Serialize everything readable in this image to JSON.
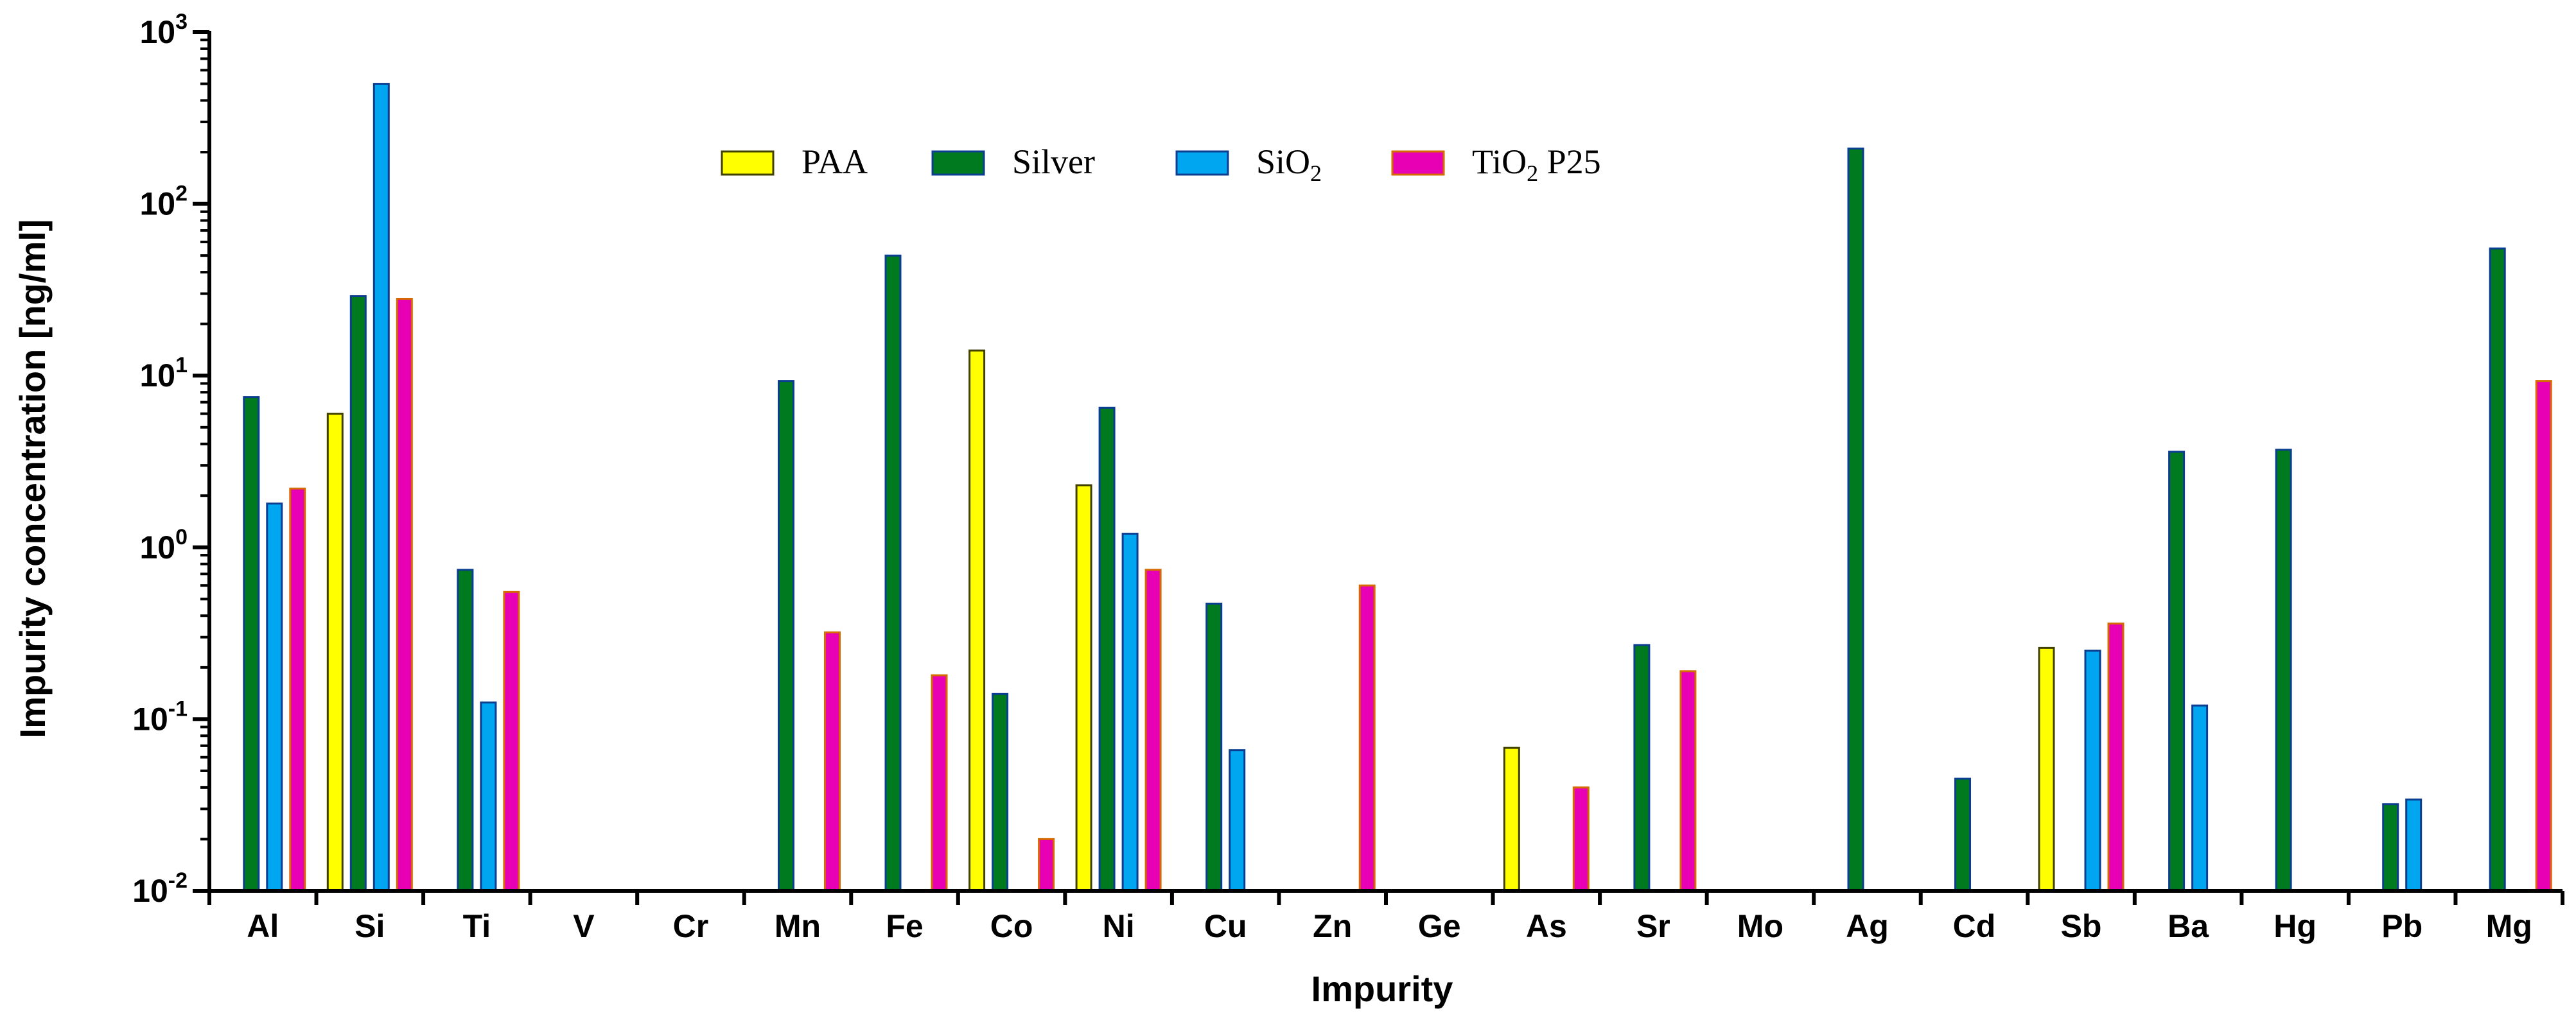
{
  "chart_data": {
    "type": "bar",
    "title": "",
    "xlabel": "Impurity",
    "ylabel": "Impurity concentration [ng/ml]",
    "yscale": "log",
    "ylim": [
      0.01,
      1000
    ],
    "yticks": [
      {
        "base": "10",
        "exp": "3"
      },
      {
        "base": "10",
        "exp": "2"
      },
      {
        "base": "10",
        "exp": "1"
      },
      {
        "base": "10",
        "exp": "0"
      },
      {
        "base": "10",
        "exp": "-1"
      },
      {
        "base": "10",
        "exp": "-2"
      }
    ],
    "categories": [
      "Al",
      "Si",
      "Ti",
      "V",
      "Cr",
      "Mn",
      "Fe",
      "Co",
      "Ni",
      "Cu",
      "Zn",
      "Ge",
      "As",
      "Sr",
      "Mo",
      "Ag",
      "Cd",
      "Sb",
      "Ba",
      "Hg",
      "Pb",
      "Mg"
    ],
    "legend": {
      "position": "top-center"
    },
    "series": [
      {
        "name": "PAA",
        "label_main": "PAA",
        "label_sub": "",
        "label_after": "",
        "color": "#ffff00",
        "edge": "#404000",
        "values": [
          null,
          6.0,
          null,
          null,
          null,
          null,
          null,
          14.0,
          2.3,
          null,
          null,
          null,
          0.068,
          null,
          null,
          null,
          null,
          0.26,
          null,
          null,
          null,
          null
        ]
      },
      {
        "name": "Silver",
        "label_main": "Silver",
        "label_sub": "",
        "label_after": "",
        "color": "#007a1f",
        "edge": "#0b3d91",
        "values": [
          7.5,
          29.0,
          0.74,
          null,
          null,
          9.3,
          50.0,
          0.14,
          6.5,
          0.47,
          null,
          null,
          null,
          0.27,
          null,
          210.0,
          0.045,
          null,
          3.6,
          3.7,
          0.032,
          55.0
        ]
      },
      {
        "name": "SiO2",
        "label_main": "SiO",
        "label_sub": "2",
        "label_after": "",
        "color": "#00a6f0",
        "edge": "#0b3d91",
        "values": [
          1.8,
          500.0,
          0.125,
          null,
          null,
          null,
          null,
          null,
          1.2,
          0.066,
          null,
          null,
          null,
          null,
          null,
          null,
          null,
          0.25,
          0.12,
          null,
          0.034,
          null
        ]
      },
      {
        "name": "TiO2 P25",
        "label_main": "TiO",
        "label_sub": "2",
        "label_after": " P25",
        "color": "#e800b4",
        "edge": "#d46a00",
        "values": [
          2.2,
          28.0,
          0.55,
          null,
          null,
          0.32,
          0.18,
          0.02,
          0.74,
          null,
          0.6,
          null,
          0.04,
          0.19,
          null,
          null,
          null,
          0.36,
          null,
          null,
          null,
          9.3
        ]
      }
    ]
  }
}
